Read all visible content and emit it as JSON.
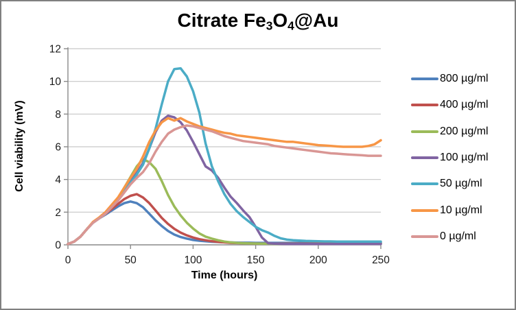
{
  "title": {
    "plain": "Citrate Fe3O4@Au",
    "parts": [
      {
        "text": "Citrate Fe"
      },
      {
        "text": "3",
        "sub": true
      },
      {
        "text": "O"
      },
      {
        "text": "4",
        "sub": true
      },
      {
        "text": "@Au"
      }
    ]
  },
  "frame": {
    "border_color": "#7f7f7f",
    "background": "#ffffff"
  },
  "chart_data": {
    "type": "line",
    "title": "Citrate Fe3O4@Au",
    "xlabel": "Time (hours)",
    "ylabel": "Cell viability (mV)",
    "xlim": [
      0,
      250
    ],
    "ylim": [
      0,
      12
    ],
    "x_ticks": [
      0,
      50,
      100,
      150,
      200,
      250
    ],
    "y_ticks": [
      0,
      2,
      4,
      6,
      8,
      10,
      12
    ],
    "grid": "horizontal",
    "gridline_color": "#c6c6c6",
    "axis_color": "#898989",
    "tick_label_color": "#1a1a1a",
    "legend_position": "right",
    "line_width": 3.5,
    "x": [
      0,
      5,
      10,
      15,
      20,
      25,
      30,
      35,
      40,
      45,
      50,
      55,
      60,
      65,
      70,
      75,
      80,
      85,
      90,
      95,
      100,
      105,
      110,
      115,
      120,
      125,
      130,
      135,
      140,
      145,
      150,
      155,
      160,
      165,
      170,
      175,
      180,
      185,
      190,
      195,
      200,
      205,
      210,
      215,
      220,
      225,
      230,
      235,
      240,
      245,
      250
    ],
    "series": [
      {
        "name": "800 µg/ml",
        "color": "#4F81BD",
        "values": [
          0.05,
          0.2,
          0.5,
          0.95,
          1.35,
          1.62,
          1.85,
          2.1,
          2.35,
          2.55,
          2.65,
          2.55,
          2.3,
          1.9,
          1.5,
          1.15,
          0.85,
          0.63,
          0.48,
          0.38,
          0.3,
          0.25,
          0.22,
          0.19,
          0.17,
          0.16,
          0.15,
          0.14,
          0.13,
          0.13,
          0.12,
          0.12,
          0.12,
          0.12,
          0.12,
          0.12,
          0.12,
          0.12,
          0.12,
          0.12,
          0.12,
          0.12,
          0.12,
          0.12,
          0.12,
          0.12,
          0.12,
          0.12,
          0.13,
          0.13,
          0.13
        ]
      },
      {
        "name": "400 µg/ml",
        "color": "#C0504D",
        "values": [
          0.05,
          0.2,
          0.5,
          0.95,
          1.38,
          1.65,
          1.9,
          2.2,
          2.5,
          2.8,
          3.0,
          3.1,
          2.9,
          2.55,
          2.1,
          1.65,
          1.28,
          0.98,
          0.75,
          0.58,
          0.45,
          0.35,
          0.28,
          0.22,
          0.18,
          0.15,
          0.12,
          0.11,
          0.1,
          0.09,
          0.08,
          0.08,
          0.07,
          0.07,
          0.07,
          0.07,
          0.07,
          0.07,
          0.07,
          0.07,
          0.07,
          0.07,
          0.07,
          0.07,
          0.07,
          0.07,
          0.07,
          0.07,
          0.07,
          0.07,
          0.07
        ]
      },
      {
        "name": "200 µg/ml",
        "color": "#9BBB59",
        "values": [
          0.05,
          0.2,
          0.5,
          0.95,
          1.38,
          1.65,
          1.95,
          2.3,
          2.85,
          3.5,
          4.15,
          4.8,
          5.25,
          5.05,
          4.65,
          3.9,
          3.05,
          2.35,
          1.8,
          1.35,
          1.0,
          0.7,
          0.5,
          0.38,
          0.28,
          0.2,
          0.15,
          0.12,
          0.1,
          0.09,
          0.08,
          0.07,
          0.07,
          0.06,
          0.06,
          0.06,
          0.06,
          0.06,
          0.06,
          0.06,
          0.06,
          0.06,
          0.06,
          0.06,
          0.06,
          0.06,
          0.06,
          0.06,
          0.06,
          0.06,
          0.06
        ]
      },
      {
        "name": "100 µg/ml",
        "color": "#8064A2",
        "values": [
          0.05,
          0.2,
          0.5,
          0.95,
          1.38,
          1.65,
          1.95,
          2.4,
          2.8,
          3.3,
          3.9,
          4.4,
          5.0,
          5.9,
          6.9,
          7.6,
          7.9,
          7.8,
          7.5,
          7.0,
          6.3,
          5.55,
          4.8,
          4.55,
          4.1,
          3.5,
          2.95,
          2.55,
          2.1,
          1.7,
          1.1,
          0.45,
          0.1,
          0.07,
          0.06,
          0.05,
          0.05,
          0.05,
          0.05,
          0.05,
          0.05,
          0.05,
          0.05,
          0.05,
          0.05,
          0.05,
          0.05,
          0.05,
          0.05,
          0.05,
          0.05
        ]
      },
      {
        "name": "50 µg/ml",
        "color": "#4BACC6",
        "values": [
          0.05,
          0.2,
          0.5,
          0.95,
          1.38,
          1.65,
          1.95,
          2.35,
          2.75,
          3.25,
          3.8,
          4.3,
          4.9,
          5.9,
          7.1,
          8.6,
          10.0,
          10.75,
          10.8,
          10.3,
          9.4,
          8.1,
          6.2,
          4.8,
          3.9,
          3.1,
          2.5,
          2.05,
          1.7,
          1.4,
          1.1,
          0.9,
          0.75,
          0.55,
          0.4,
          0.32,
          0.28,
          0.26,
          0.24,
          0.23,
          0.22,
          0.21,
          0.21,
          0.2,
          0.2,
          0.2,
          0.2,
          0.2,
          0.2,
          0.2,
          0.2
        ]
      },
      {
        "name": "10 µg/ml",
        "color": "#F79646",
        "values": [
          0.05,
          0.2,
          0.5,
          0.95,
          1.4,
          1.68,
          2.0,
          2.45,
          2.9,
          3.5,
          4.1,
          4.65,
          5.4,
          6.3,
          7.0,
          7.5,
          7.75,
          7.6,
          7.75,
          7.55,
          7.4,
          7.25,
          7.15,
          7.05,
          6.95,
          6.85,
          6.8,
          6.7,
          6.65,
          6.6,
          6.55,
          6.5,
          6.45,
          6.4,
          6.35,
          6.3,
          6.3,
          6.25,
          6.2,
          6.15,
          6.1,
          6.08,
          6.05,
          6.02,
          6.0,
          6.0,
          6.0,
          6.0,
          6.05,
          6.15,
          6.4
        ]
      },
      {
        "name": "0 µg/ml",
        "color": "#D99694",
        "values": [
          0.05,
          0.2,
          0.5,
          0.95,
          1.35,
          1.62,
          1.9,
          2.3,
          2.7,
          3.2,
          3.7,
          4.1,
          4.45,
          5.0,
          5.7,
          6.3,
          6.8,
          7.05,
          7.2,
          7.3,
          7.25,
          7.15,
          7.05,
          6.95,
          6.8,
          6.65,
          6.55,
          6.45,
          6.35,
          6.3,
          6.25,
          6.2,
          6.15,
          6.05,
          6.0,
          5.95,
          5.9,
          5.85,
          5.8,
          5.75,
          5.7,
          5.65,
          5.6,
          5.58,
          5.55,
          5.52,
          5.5,
          5.48,
          5.45,
          5.45,
          5.45
        ]
      }
    ]
  }
}
